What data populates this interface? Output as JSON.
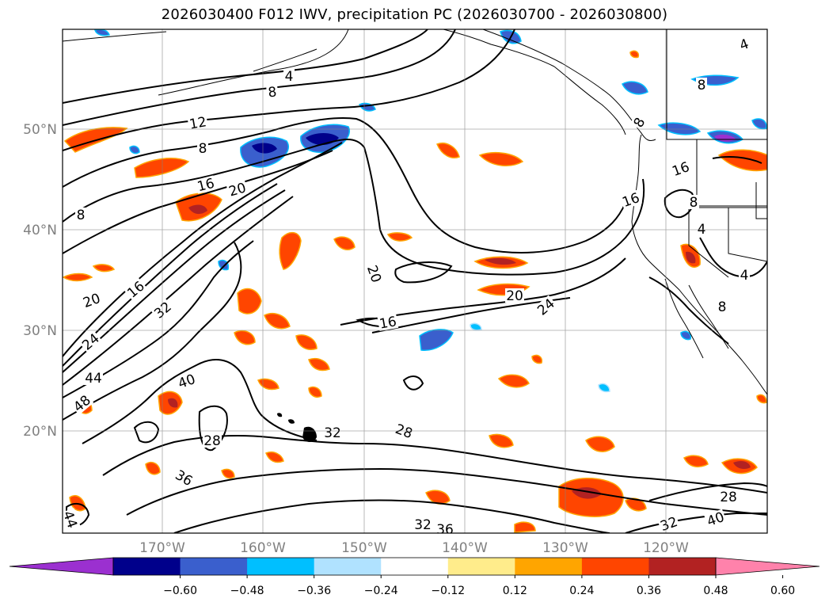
{
  "title": "2026030400 F012 IWV, precipitation PC (2026030700 - 2026030800)",
  "lat_labels": [
    "50°N",
    "40°N",
    "30°N",
    "20°N"
  ],
  "lon_labels": [
    "170°W",
    "160°W",
    "150°W",
    "140°W",
    "130°W",
    "120°W"
  ],
  "colorbar": {
    "ticks": [
      "−0.60",
      "−0.48",
      "−0.36",
      "−0.24",
      "−0.12",
      "0.12",
      "0.24",
      "0.36",
      "0.48",
      "0.60"
    ],
    "colors": [
      "#9b30d0",
      "#00008b",
      "#3a5fcd",
      "#00bfff",
      "#b0e2ff",
      "#ffffff",
      "#ffec8b",
      "#ffa500",
      "#ff4500",
      "#b22222",
      "#ff82ab"
    ]
  },
  "contour_labels": [
    {
      "text": "4"
    },
    {
      "text": "8"
    },
    {
      "text": "12"
    },
    {
      "text": "8"
    },
    {
      "text": "16"
    },
    {
      "text": "20"
    },
    {
      "text": "8"
    },
    {
      "text": "20"
    },
    {
      "text": "16"
    },
    {
      "text": "32"
    },
    {
      "text": "24"
    },
    {
      "text": "44"
    },
    {
      "text": "48"
    },
    {
      "text": "40"
    },
    {
      "text": "28"
    },
    {
      "text": "32"
    },
    {
      "text": "36"
    },
    {
      "text": "44"
    },
    {
      "text": "20"
    },
    {
      "text": "16"
    },
    {
      "text": "20"
    },
    {
      "text": "24"
    },
    {
      "text": "28"
    },
    {
      "text": "32"
    },
    {
      "text": "36"
    },
    {
      "text": "16"
    },
    {
      "text": "8"
    },
    {
      "text": "16"
    },
    {
      "text": "8"
    },
    {
      "text": "4"
    },
    {
      "text": "4"
    },
    {
      "text": "8"
    },
    {
      "text": "28"
    },
    {
      "text": "40"
    },
    {
      "text": "32"
    },
    {
      "text": "4"
    },
    {
      "text": "8"
    }
  ]
}
